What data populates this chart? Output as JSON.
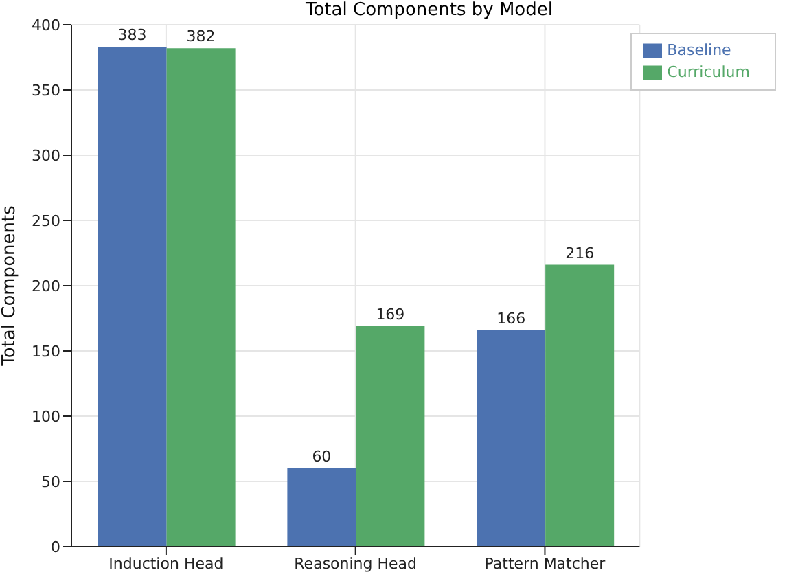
{
  "chart_data": {
    "type": "bar",
    "title": "Total Components by Model",
    "ylabel": "Total Components",
    "categories": [
      "Induction Head",
      "Reasoning Head",
      "Pattern Matcher"
    ],
    "series": [
      {
        "name": "Baseline",
        "color": "#4c72b0",
        "values": [
          383,
          60,
          166
        ]
      },
      {
        "name": "Curriculum",
        "color": "#55a868",
        "values": [
          382,
          169,
          216
        ]
      }
    ],
    "ylim": [
      0,
      400
    ],
    "yticks": [
      0,
      50,
      100,
      150,
      200,
      250,
      300,
      350,
      400
    ],
    "grid": true,
    "legend": "top right",
    "data_labels": true
  }
}
